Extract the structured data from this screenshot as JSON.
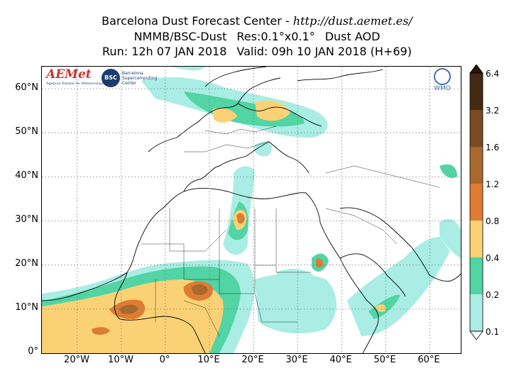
{
  "title": {
    "line1_text": "Barcelona Dust Forecast Center - ",
    "line1_url": "http://dust.aemet.es/",
    "line2_model": "NMMB/BSC-Dust",
    "line2_res": "Res:0.1°x0.1°",
    "line2_var": "Dust AOD",
    "line3_run": "Run: 12h 07 JAN 2018",
    "line3_valid": "Valid: 09h 10 JAN 2018 (H+69)"
  },
  "axes": {
    "y_ticks": [
      "0°",
      "10°N",
      "20°N",
      "30°N",
      "40°N",
      "50°N",
      "60°N"
    ],
    "x_ticks": [
      "20°W",
      "10°W",
      "0°",
      "10°E",
      "20°E",
      "30°E",
      "40°E",
      "50°E",
      "60°E"
    ],
    "lon_range": [
      -28,
      67
    ],
    "lat_range": [
      0,
      65
    ]
  },
  "colorbar": {
    "levels": [
      "0.1",
      "0.2",
      "0.4",
      "0.8",
      "1.2",
      "1.6",
      "3.2",
      "6.4"
    ],
    "colors": [
      "#a9ede4",
      "#52d4a4",
      "#fad275",
      "#de7c34",
      "#a8682e",
      "#7a4a22",
      "#452a13"
    ]
  },
  "logos": {
    "aemet_name": "AEMet",
    "aemet_sub": "Agencia Estatal de Meteorología",
    "bsc_short": "BSC",
    "bsc_line1": "Barcelona",
    "bsc_line2": "Supercomputing",
    "bsc_line3": "Center",
    "wmo": "WMO"
  }
}
